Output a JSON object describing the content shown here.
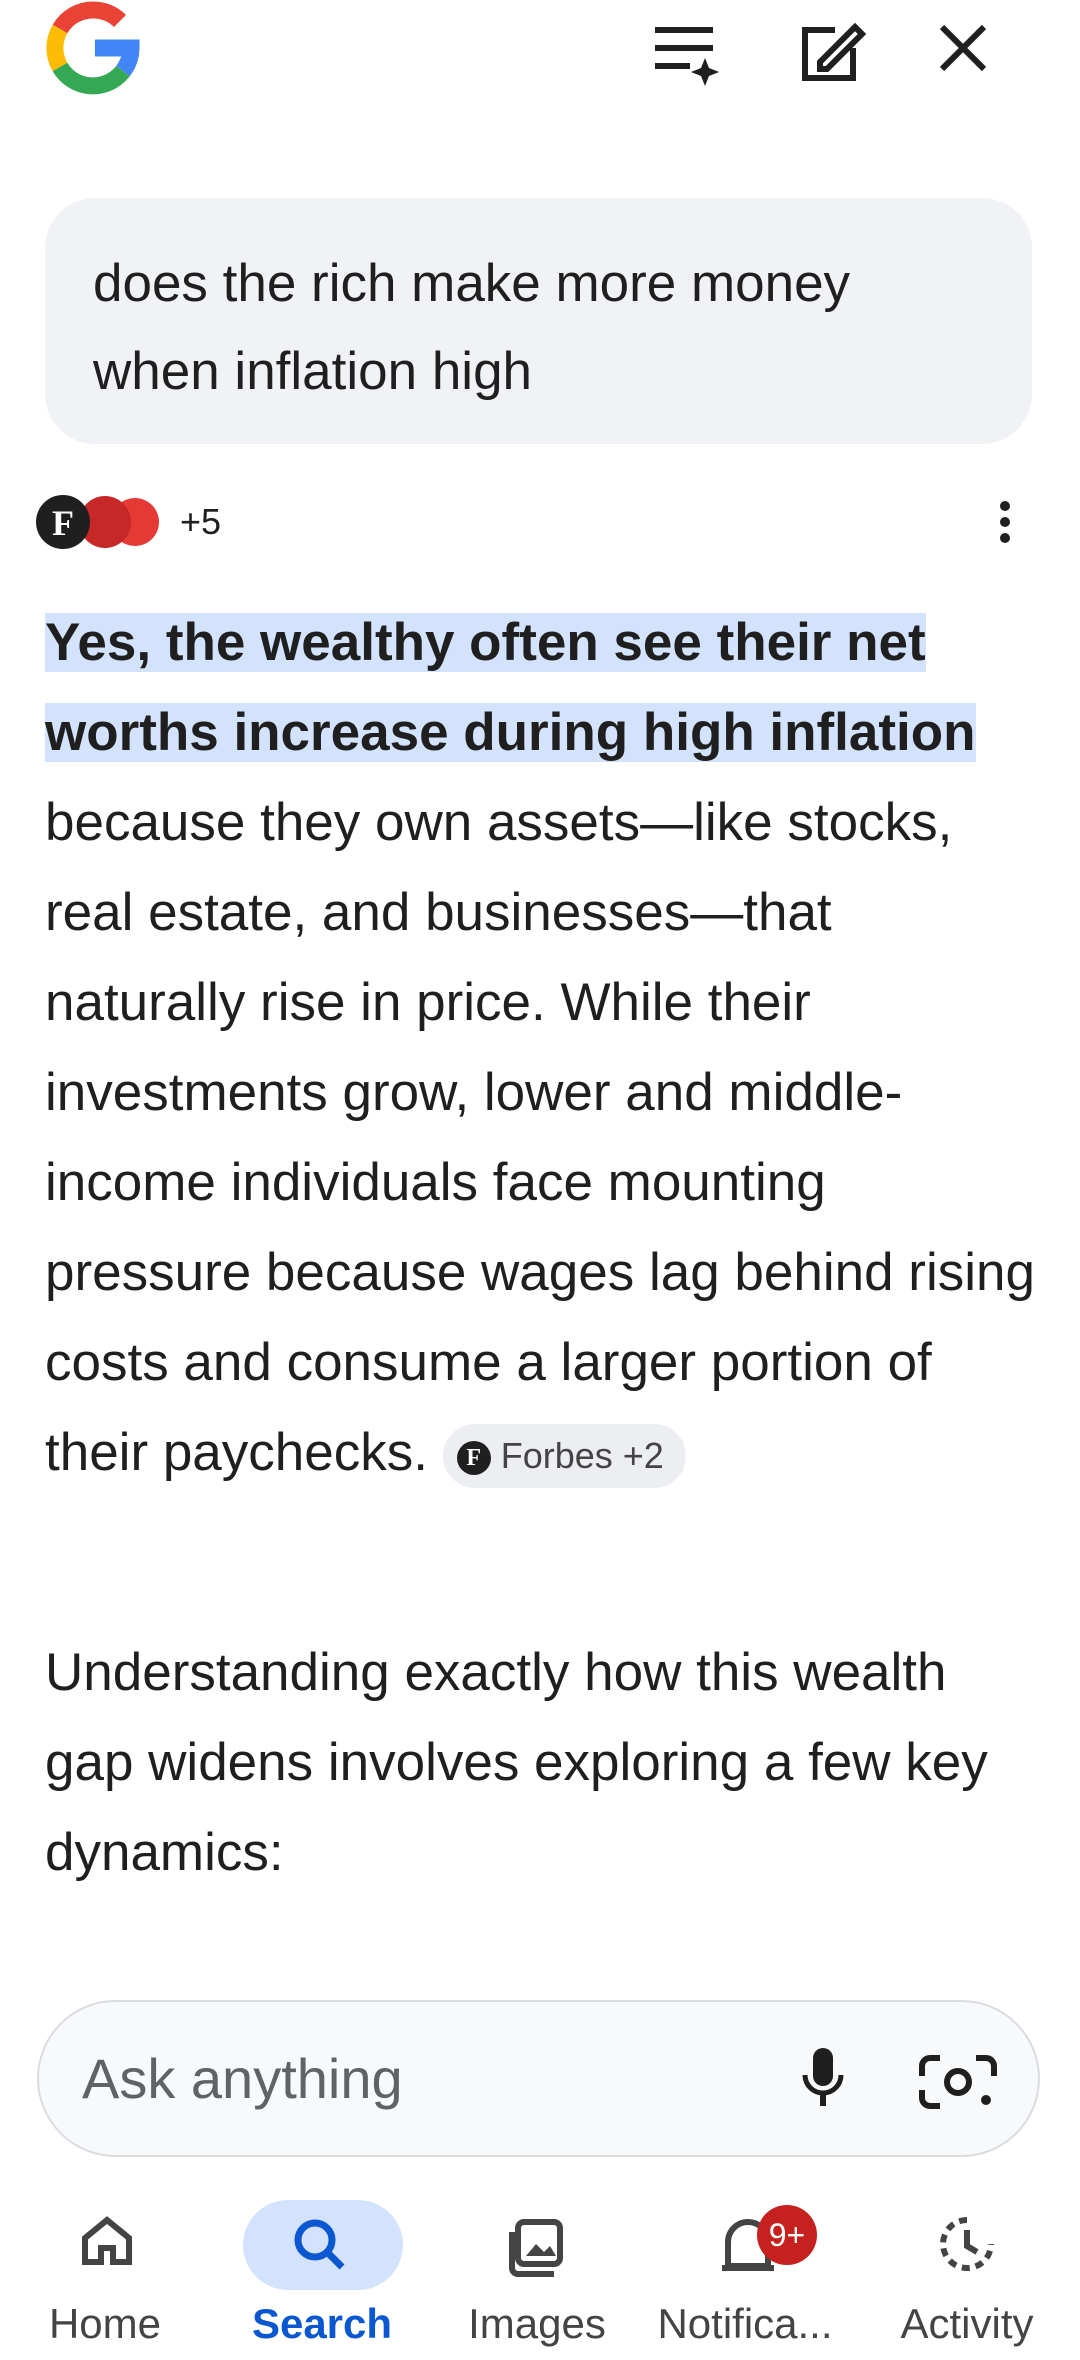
{
  "query": "does the rich make more money when inflation high",
  "answer": {
    "source_logo": "F",
    "sources_more": "+5",
    "highlight": "Yes, the wealthy often see their net worths increase during high inflation",
    "body": "because they own assets—like stocks, real estate, and businesses—that naturally rise in price. While their investments grow, lower and middle-income individuals face mounting pressure because wages lag behind rising costs and consume a larger portion of their paychecks.",
    "citation_logo": "F",
    "citation": "Forbes +2"
  },
  "followup": "Understanding exactly how this wealth gap widens involves exploring a few key dynamics:",
  "input": {
    "placeholder": "Ask anything"
  },
  "nav": {
    "items": [
      "Home",
      "Search",
      "Images",
      "Notifica...",
      "Activity"
    ],
    "badge": "9+"
  }
}
